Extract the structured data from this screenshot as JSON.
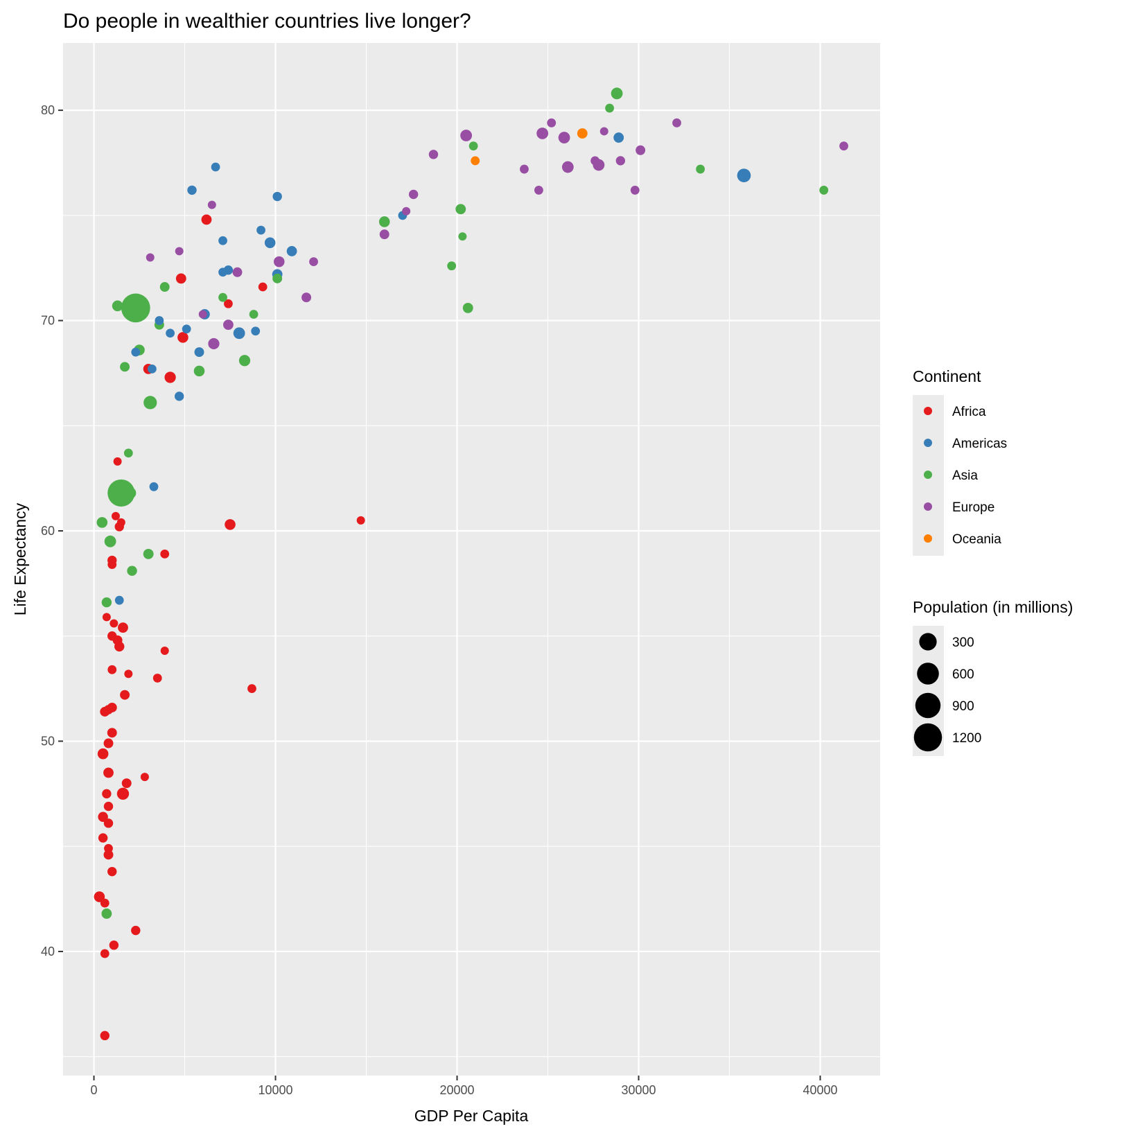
{
  "chart_data": {
    "type": "scatter",
    "title": "Do people in wealthier countries live longer?",
    "xlabel": "GDP Per Capita",
    "ylabel": "Life Expectancy",
    "xlim": [
      -1700,
      43300
    ],
    "ylim": [
      34.1,
      83.2
    ],
    "x_ticks": [
      0,
      10000,
      20000,
      30000,
      40000
    ],
    "y_ticks": [
      40,
      50,
      60,
      70,
      80
    ],
    "grid": true,
    "legend_placement": "right",
    "color_legend": {
      "title": "Continent",
      "entries": [
        {
          "name": "Africa",
          "color": "#E41A1C"
        },
        {
          "name": "Americas",
          "color": "#377EB8"
        },
        {
          "name": "Asia",
          "color": "#4DAF4A"
        },
        {
          "name": "Europe",
          "color": "#984EA3"
        },
        {
          "name": "Oceania",
          "color": "#FF7F00"
        }
      ]
    },
    "size_legend": {
      "title": "Population (in millions)",
      "values": [
        300,
        600,
        900,
        1200
      ]
    },
    "series": [
      {
        "name": "Africa",
        "color": "#E41A1C",
        "points": [
          [
            6200,
            74.8,
            30
          ],
          [
            4800,
            72.0,
            30
          ],
          [
            9300,
            71.6,
            10
          ],
          [
            7400,
            70.8,
            10
          ],
          [
            4900,
            69.2,
            40
          ],
          [
            3000,
            67.7,
            30
          ],
          [
            4200,
            67.3,
            50
          ],
          [
            1300,
            63.3,
            5
          ],
          [
            14700,
            60.5,
            5
          ],
          [
            7500,
            60.3,
            40
          ],
          [
            1200,
            60.7,
            5
          ],
          [
            1500,
            60.4,
            5
          ],
          [
            1400,
            60.2,
            15
          ],
          [
            3900,
            58.9,
            10
          ],
          [
            1000,
            58.6,
            15
          ],
          [
            1000,
            58.4,
            10
          ],
          [
            700,
            55.9,
            5
          ],
          [
            1100,
            55.6,
            5
          ],
          [
            1600,
            55.4,
            30
          ],
          [
            1000,
            55.0,
            15
          ],
          [
            1300,
            54.8,
            20
          ],
          [
            1400,
            54.5,
            25
          ],
          [
            3900,
            54.3,
            5
          ],
          [
            1000,
            53.4,
            10
          ],
          [
            1900,
            53.2,
            5
          ],
          [
            3500,
            53.0,
            10
          ],
          [
            8700,
            52.5,
            10
          ],
          [
            1700,
            52.2,
            20
          ],
          [
            1000,
            51.6,
            20
          ],
          [
            800,
            51.5,
            15
          ],
          [
            600,
            51.4,
            20
          ],
          [
            1000,
            50.4,
            20
          ],
          [
            800,
            49.9,
            20
          ],
          [
            500,
            49.4,
            40
          ],
          [
            800,
            48.5,
            30
          ],
          [
            2800,
            48.3,
            5
          ],
          [
            1800,
            48.0,
            20
          ],
          [
            1600,
            47.5,
            70
          ],
          [
            700,
            47.5,
            15
          ],
          [
            800,
            46.9,
            15
          ],
          [
            500,
            46.4,
            25
          ],
          [
            800,
            46.1,
            15
          ],
          [
            500,
            45.4,
            15
          ],
          [
            800,
            44.9,
            10
          ],
          [
            800,
            44.6,
            20
          ],
          [
            1000,
            43.8,
            15
          ],
          [
            300,
            42.6,
            40
          ],
          [
            600,
            42.3,
            10
          ],
          [
            2300,
            41.0,
            15
          ],
          [
            1100,
            40.3,
            15
          ],
          [
            600,
            39.9,
            10
          ],
          [
            600,
            36.0,
            15
          ]
        ]
      },
      {
        "name": "Americas",
        "color": "#377EB8",
        "points": [
          [
            6700,
            77.3,
            10
          ],
          [
            5400,
            76.2,
            15
          ],
          [
            10100,
            75.9,
            15
          ],
          [
            9200,
            74.3,
            10
          ],
          [
            7100,
            73.8,
            10
          ],
          [
            9700,
            73.7,
            40
          ],
          [
            10900,
            73.3,
            30
          ],
          [
            7100,
            72.3,
            10
          ],
          [
            7400,
            72.4,
            15
          ],
          [
            10100,
            72.2,
            30
          ],
          [
            3600,
            70.0,
            10
          ],
          [
            6100,
            70.3,
            30
          ],
          [
            5100,
            69.6,
            10
          ],
          [
            8900,
            69.5,
            10
          ],
          [
            4200,
            69.4,
            10
          ],
          [
            8000,
            69.4,
            60
          ],
          [
            2300,
            68.5,
            10
          ],
          [
            5800,
            68.5,
            20
          ],
          [
            3200,
            67.7,
            10
          ],
          [
            4700,
            66.4,
            15
          ],
          [
            3300,
            62.1,
            10
          ],
          [
            1400,
            56.7,
            10
          ],
          [
            17000,
            75.0,
            10
          ],
          [
            28900,
            78.7,
            30
          ],
          [
            35800,
            76.9,
            120
          ]
        ]
      },
      {
        "name": "Asia",
        "color": "#4DAF4A",
        "points": [
          [
            28800,
            80.8,
            60
          ],
          [
            28400,
            80.1,
            10
          ],
          [
            20900,
            78.3,
            10
          ],
          [
            33400,
            77.2,
            10
          ],
          [
            40200,
            76.2,
            10
          ],
          [
            16000,
            74.7,
            40
          ],
          [
            20200,
            75.3,
            30
          ],
          [
            20300,
            74.0,
            5
          ],
          [
            19700,
            72.6,
            10
          ],
          [
            20600,
            70.6,
            30
          ],
          [
            10100,
            72.0,
            20
          ],
          [
            8800,
            70.3,
            10
          ],
          [
            7100,
            71.1,
            10
          ],
          [
            3900,
            71.6,
            20
          ],
          [
            1300,
            70.7,
            40
          ],
          [
            2300,
            70.6,
            1300
          ],
          [
            3600,
            69.8,
            20
          ],
          [
            2500,
            68.6,
            40
          ],
          [
            1700,
            67.8,
            20
          ],
          [
            5800,
            67.6,
            40
          ],
          [
            8300,
            68.1,
            50
          ],
          [
            3100,
            66.1,
            110
          ],
          [
            1900,
            63.7,
            10
          ],
          [
            1500,
            61.8,
            1100
          ],
          [
            2000,
            61.8,
            60
          ],
          [
            450,
            60.4,
            40
          ],
          [
            900,
            59.5,
            60
          ],
          [
            3000,
            58.9,
            30
          ],
          [
            2100,
            58.1,
            25
          ],
          [
            700,
            56.6,
            25
          ],
          [
            700,
            41.8,
            30
          ]
        ]
      },
      {
        "name": "Europe",
        "color": "#984EA3",
        "points": [
          [
            32100,
            79.4,
            10
          ],
          [
            25200,
            79.4,
            10
          ],
          [
            24700,
            78.9,
            60
          ],
          [
            28100,
            79.0,
            5
          ],
          [
            20500,
            78.8,
            60
          ],
          [
            25900,
            78.7,
            60
          ],
          [
            41300,
            78.3,
            10
          ],
          [
            30100,
            78.1,
            20
          ],
          [
            18700,
            77.9,
            15
          ],
          [
            27600,
            77.6,
            10
          ],
          [
            29000,
            77.6,
            15
          ],
          [
            23700,
            77.2,
            10
          ],
          [
            26100,
            77.3,
            60
          ],
          [
            27800,
            77.4,
            60
          ],
          [
            24500,
            76.2,
            10
          ],
          [
            29800,
            76.2,
            10
          ],
          [
            17600,
            76.0,
            15
          ],
          [
            17200,
            75.2,
            5
          ],
          [
            6500,
            75.5,
            5
          ],
          [
            16000,
            74.1,
            20
          ],
          [
            4700,
            73.3,
            5
          ],
          [
            3100,
            73.0,
            5
          ],
          [
            10200,
            72.8,
            40
          ],
          [
            12100,
            72.8,
            10
          ],
          [
            7900,
            72.3,
            20
          ],
          [
            11700,
            71.1,
            20
          ],
          [
            7400,
            69.8,
            30
          ],
          [
            6000,
            70.3,
            5
          ],
          [
            6600,
            68.9,
            50
          ]
        ]
      },
      {
        "name": "Oceania",
        "color": "#FF7F00",
        "points": [
          [
            26900,
            78.9,
            30
          ],
          [
            21000,
            77.6,
            10
          ]
        ]
      }
    ]
  }
}
